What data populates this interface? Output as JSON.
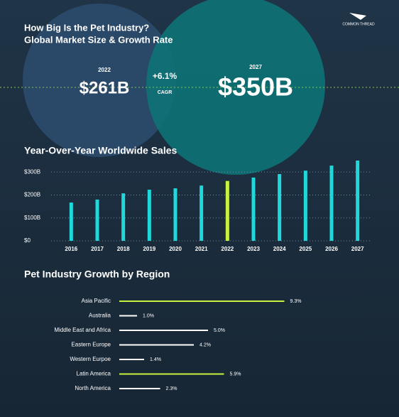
{
  "header": {
    "title": "How Big Is the Pet Industry?",
    "subtitle": "Global Market Size & Growth Rate",
    "logo": "COMMON THREAD",
    "left_year": "2022",
    "left_value": "$261B",
    "growth": "+6.1%",
    "growth_label": "CAGR",
    "right_year": "2027",
    "right_value": "$350B"
  },
  "chart_data": [
    {
      "type": "bar",
      "title": "Year-Over-Year Worldwide Sales",
      "categories": [
        "2016",
        "2017",
        "2018",
        "2019",
        "2020",
        "2021",
        "2022",
        "2023",
        "2024",
        "2025",
        "2026",
        "2027"
      ],
      "values": [
        167,
        180,
        207,
        223,
        229,
        241,
        261,
        276,
        291,
        306,
        328,
        350
      ],
      "colors": [
        "#1fd8da",
        "#1fd8da",
        "#1fd8da",
        "#1fd8da",
        "#1fd8da",
        "#1fd8da",
        "#c9f23e",
        "#1fd8da",
        "#1fd8da",
        "#1fd8da",
        "#1fd8da",
        "#1fd8da"
      ],
      "ylim": [
        0,
        350
      ],
      "yticks": [
        {
          "value": 0,
          "label": "$0"
        },
        {
          "value": 100,
          "label": "$100B"
        },
        {
          "value": 200,
          "label": "$200B"
        },
        {
          "value": 300,
          "label": "$300B"
        }
      ],
      "grid": true
    },
    {
      "type": "barh",
      "title": "Pet Industry Growth by Region",
      "categories": [
        "Asia Pacific",
        "Australia",
        "Middle East and Africa",
        "Eastern Europe",
        "Western Eurpoe",
        "Latin America",
        "North America"
      ],
      "values": [
        9.3,
        1.0,
        5.0,
        4.2,
        1.4,
        5.9,
        2.3
      ],
      "value_labels": [
        "9.3%",
        "1.0%",
        "5.0%",
        "4.2%",
        "1.4%",
        "5.9%",
        "2.3%"
      ],
      "colors": [
        "#c9f23e",
        "#ffffff",
        "#ffffff",
        "#ffffff",
        "#ffffff",
        "#c9f23e",
        "#ffffff"
      ],
      "xlim": [
        0,
        10
      ]
    }
  ]
}
